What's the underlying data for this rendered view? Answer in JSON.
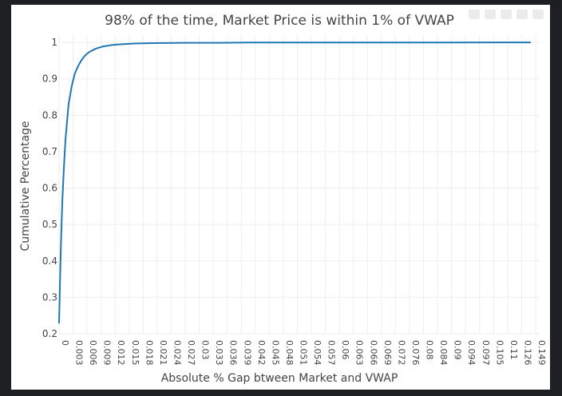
{
  "chart_data": {
    "type": "line",
    "title": "98% of the time, Market Price is within 1% of VWAP",
    "xlabel": "Absolute % Gap btween Market and VWAP",
    "ylabel": "Cumulative Percentage",
    "xlim": [
      0,
      0.152
    ],
    "ylim": [
      0.2,
      1.02
    ],
    "y_ticks": [
      "0.2",
      "0.3",
      "0.4",
      "0.5",
      "0.6",
      "0.7",
      "0.8",
      "0.9",
      "1"
    ],
    "x_tick_labels": [
      "0",
      "0.003",
      "0.006",
      "0.009",
      "0.012",
      "0.015",
      "0.018",
      "0.021",
      "0.024",
      "0.027",
      "0.03",
      "0.033",
      "0.036",
      "0.039",
      "0.042",
      "0.045",
      "0.048",
      "0.051",
      "0.054",
      "0.057",
      "0.06",
      "0.063",
      "0.066",
      "0.069",
      "0.072",
      "0.076",
      "0.08",
      "0.084",
      "0.09",
      "0.094",
      "0.097",
      "0.105",
      "0.11",
      "0.126",
      "0.149"
    ],
    "series": [
      {
        "name": "Cumulative Percentage",
        "color": "#1f77b4",
        "x": [
          0,
          0.0005,
          0.001,
          0.0015,
          0.002,
          0.0025,
          0.003,
          0.004,
          0.005,
          0.006,
          0.007,
          0.008,
          0.009,
          0.01,
          0.011,
          0.012,
          0.014,
          0.016,
          0.018,
          0.02,
          0.024,
          0.03,
          0.04,
          0.05,
          0.06,
          0.08,
          0.1,
          0.12,
          0.149
        ],
        "values": [
          0.23,
          0.42,
          0.56,
          0.65,
          0.73,
          0.78,
          0.83,
          0.88,
          0.915,
          0.935,
          0.95,
          0.962,
          0.97,
          0.976,
          0.98,
          0.984,
          0.989,
          0.992,
          0.994,
          0.995,
          0.997,
          0.998,
          0.999,
          0.999,
          0.9995,
          0.9995,
          0.9998,
          0.9999,
          1.0
        ]
      }
    ],
    "grid": true
  }
}
